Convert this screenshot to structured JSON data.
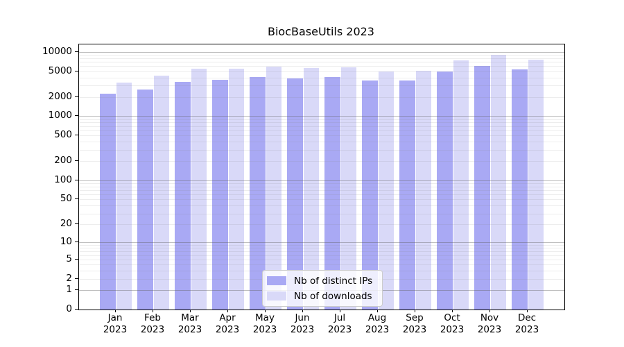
{
  "chart_data": {
    "type": "bar",
    "title": "BiocBaseUtils 2023",
    "categories": [
      {
        "month": "Jan",
        "year": "2023"
      },
      {
        "month": "Feb",
        "year": "2023"
      },
      {
        "month": "Mar",
        "year": "2023"
      },
      {
        "month": "Apr",
        "year": "2023"
      },
      {
        "month": "May",
        "year": "2023"
      },
      {
        "month": "Jun",
        "year": "2023"
      },
      {
        "month": "Jul",
        "year": "2023"
      },
      {
        "month": "Aug",
        "year": "2023"
      },
      {
        "month": "Sep",
        "year": "2023"
      },
      {
        "month": "Oct",
        "year": "2023"
      },
      {
        "month": "Nov",
        "year": "2023"
      },
      {
        "month": "Dec",
        "year": "2023"
      }
    ],
    "series": [
      {
        "name": "Nb of distinct IPs",
        "color": "#a9a9f4",
        "values": [
          2250,
          2600,
          3450,
          3700,
          4100,
          3900,
          4100,
          3600,
          3550,
          4900,
          6000,
          5300
        ]
      },
      {
        "name": "Nb of downloads",
        "color": "#d9d9f8",
        "values": [
          3300,
          4250,
          5400,
          5500,
          5900,
          5600,
          5700,
          4950,
          5100,
          7300,
          9000,
          7550
        ]
      }
    ],
    "yscale": "log1p",
    "ylim": [
      0,
      13000
    ],
    "yticks": [
      10000,
      5000,
      2000,
      1000,
      500,
      200,
      100,
      50,
      20,
      10,
      5,
      2,
      1,
      0
    ],
    "grid": true,
    "legend_position": "lower center"
  }
}
